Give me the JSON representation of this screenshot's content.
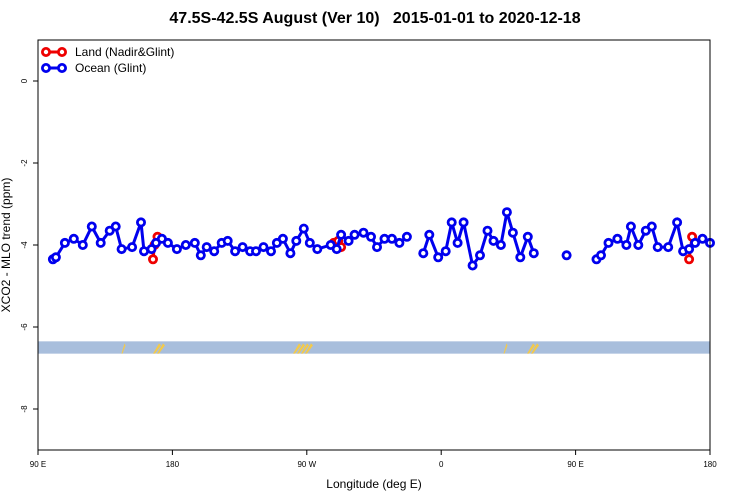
{
  "chart_data": {
    "type": "line",
    "title": "47.5S-42.5S August (Ver 10)   2015-01-01 to 2020-12-18",
    "xlabel": "Longitude (deg E)",
    "ylabel": "XCO2 - MLO trend (ppm)",
    "x_ticks": [
      {
        "value": 90,
        "label": "90 E"
      },
      {
        "value": 180,
        "label": "180"
      },
      {
        "value": 270,
        "label": "90 W"
      },
      {
        "value": 360,
        "label": "0"
      },
      {
        "value": 450,
        "label": "90 E"
      },
      {
        "value": 540,
        "label": "180"
      }
    ],
    "y_ticks": [
      {
        "value": 0,
        "label": "0"
      },
      {
        "value": -2,
        "label": "-2"
      },
      {
        "value": -4,
        "label": "-4"
      },
      {
        "value": -6,
        "label": "-6"
      },
      {
        "value": -8,
        "label": "-8"
      }
    ],
    "xlim": [
      90,
      540
    ],
    "ylim": [
      -9,
      1
    ],
    "grid": false,
    "legend_position": "top-left",
    "series": [
      {
        "name": "Land (Nadir&Glint)",
        "color": "#ee0000",
        "segments": [
          [
            [
              167,
              -4.35
            ],
            [
              168,
              -4.0
            ],
            [
              170,
              -3.8
            ]
          ],
          [
            [
              288,
              -3.95
            ],
            [
              291,
              -3.9
            ],
            [
              293,
              -4.05
            ]
          ],
          [
            [
              526,
              -4.35
            ],
            [
              528,
              -3.8
            ]
          ]
        ]
      },
      {
        "name": "Ocean (Glint)",
        "color": "#0000ee",
        "segments": [
          [
            [
              100,
              -4.35
            ],
            [
              102,
              -4.3
            ],
            [
              108,
              -3.95
            ],
            [
              114,
              -3.85
            ],
            [
              120,
              -4.0
            ],
            [
              126,
              -3.55
            ],
            [
              132,
              -3.95
            ],
            [
              138,
              -3.65
            ],
            [
              142,
              -3.55
            ],
            [
              146,
              -4.1
            ],
            [
              153,
              -4.05
            ],
            [
              159,
              -3.45
            ],
            [
              161,
              -4.15
            ],
            [
              166,
              -4.1
            ],
            [
              169,
              -3.95
            ],
            [
              173,
              -3.85
            ],
            [
              177,
              -3.95
            ],
            [
              183,
              -4.1
            ],
            [
              189,
              -4.0
            ],
            [
              195,
              -3.95
            ],
            [
              199,
              -4.25
            ],
            [
              203,
              -4.05
            ],
            [
              208,
              -4.15
            ],
            [
              213,
              -3.95
            ],
            [
              217,
              -3.9
            ],
            [
              222,
              -4.15
            ],
            [
              227,
              -4.05
            ],
            [
              232,
              -4.15
            ],
            [
              236,
              -4.15
            ],
            [
              241,
              -4.05
            ],
            [
              246,
              -4.15
            ],
            [
              250,
              -3.95
            ],
            [
              254,
              -3.85
            ],
            [
              259,
              -4.2
            ],
            [
              263,
              -3.9
            ],
            [
              268,
              -3.6
            ],
            [
              272,
              -3.95
            ],
            [
              277,
              -4.1
            ],
            [
              286,
              -4.0
            ],
            [
              290,
              -4.1
            ],
            [
              293,
              -3.75
            ],
            [
              298,
              -3.9
            ],
            [
              302,
              -3.75
            ],
            [
              308,
              -3.7
            ],
            [
              313,
              -3.8
            ],
            [
              317,
              -4.05
            ],
            [
              322,
              -3.85
            ],
            [
              327,
              -3.85
            ],
            [
              332,
              -3.95
            ],
            [
              337,
              -3.8
            ]
          ],
          [
            [
              348,
              -4.2
            ],
            [
              352,
              -3.75
            ],
            [
              358,
              -4.3
            ],
            [
              363,
              -4.15
            ],
            [
              367,
              -3.45
            ],
            [
              371,
              -3.95
            ],
            [
              375,
              -3.45
            ],
            [
              381,
              -4.5
            ],
            [
              386,
              -4.25
            ],
            [
              391,
              -3.65
            ],
            [
              395,
              -3.9
            ],
            [
              400,
              -4.0
            ],
            [
              404,
              -3.2
            ],
            [
              408,
              -3.7
            ],
            [
              413,
              -4.3
            ],
            [
              418,
              -3.8
            ],
            [
              422,
              -4.2
            ]
          ],
          [
            [
              444,
              -4.25
            ]
          ],
          [
            [
              464,
              -4.35
            ],
            [
              467,
              -4.25
            ],
            [
              472,
              -3.95
            ],
            [
              478,
              -3.85
            ],
            [
              484,
              -4.0
            ],
            [
              487,
              -3.55
            ],
            [
              492,
              -4.0
            ],
            [
              497,
              -3.65
            ],
            [
              501,
              -3.55
            ],
            [
              505,
              -4.05
            ],
            [
              512,
              -4.05
            ],
            [
              518,
              -3.45
            ],
            [
              522,
              -4.15
            ],
            [
              526,
              -4.1
            ],
            [
              530,
              -3.95
            ],
            [
              535,
              -3.85
            ],
            [
              540,
              -3.95
            ]
          ]
        ]
      }
    ],
    "shaded_band": {
      "y_range": [
        -6.65,
        -6.35
      ],
      "color": "#a8bedc"
    },
    "land_marks_color": "#f2c94c"
  }
}
